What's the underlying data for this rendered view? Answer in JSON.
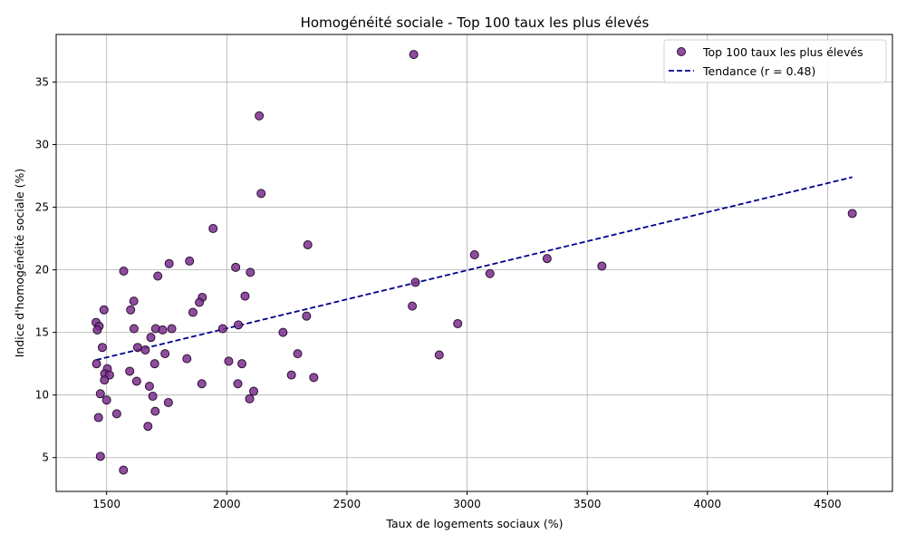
{
  "chart_data": {
    "type": "scatter",
    "title": "Homogénéité sociale - Top 100 taux les plus élevés",
    "xlabel": "Taux de logements sociaux (%)",
    "ylabel": "Indice d'homogénéité sociale (%)",
    "xlim": [
      1290,
      4770
    ],
    "ylim": [
      2.3,
      38.8
    ],
    "xticks": [
      1500,
      2000,
      2500,
      3000,
      3500,
      4000,
      4500
    ],
    "yticks": [
      5,
      10,
      15,
      20,
      25,
      30,
      35
    ],
    "grid": true,
    "legend_position": "top-right",
    "colors": {
      "points": "#7b2e8c",
      "point_edge": "#2b0f33",
      "trend": "#00008b",
      "grid": "#b0b0b0"
    },
    "series": [
      {
        "name": "Top 100 taux les plus élevés",
        "kind": "scatter",
        "points": [
          [
            2778,
            37.2
          ],
          [
            2135,
            32.3
          ],
          [
            2143,
            26.1
          ],
          [
            4603,
            24.5
          ],
          [
            1943,
            23.3
          ],
          [
            2337,
            22.0
          ],
          [
            3031,
            21.2
          ],
          [
            1845,
            20.7
          ],
          [
            3333,
            20.9
          ],
          [
            3561,
            20.3
          ],
          [
            1760,
            20.5
          ],
          [
            2037,
            20.2
          ],
          [
            1571,
            19.9
          ],
          [
            2098,
            19.8
          ],
          [
            3095,
            19.7
          ],
          [
            1713,
            19.5
          ],
          [
            2785,
            19.0
          ],
          [
            1613,
            17.5
          ],
          [
            1898,
            17.8
          ],
          [
            2076,
            17.9
          ],
          [
            1886,
            17.4
          ],
          [
            2772,
            17.1
          ],
          [
            1489,
            16.8
          ],
          [
            1600,
            16.8
          ],
          [
            1859,
            16.6
          ],
          [
            2332,
            16.3
          ],
          [
            1456,
            15.8
          ],
          [
            1469,
            15.5
          ],
          [
            1461,
            15.2
          ],
          [
            2961,
            15.7
          ],
          [
            1614,
            15.3
          ],
          [
            1704,
            15.3
          ],
          [
            1733,
            15.2
          ],
          [
            1771,
            15.3
          ],
          [
            1983,
            15.3
          ],
          [
            2048,
            15.6
          ],
          [
            2234,
            15.0
          ],
          [
            1684,
            14.6
          ],
          [
            1482,
            13.8
          ],
          [
            1629,
            13.8
          ],
          [
            1661,
            13.6
          ],
          [
            1743,
            13.3
          ],
          [
            2295,
            13.3
          ],
          [
            2884,
            13.2
          ],
          [
            1834,
            12.9
          ],
          [
            1458,
            12.5
          ],
          [
            1700,
            12.5
          ],
          [
            2008,
            12.7
          ],
          [
            2063,
            12.5
          ],
          [
            1503,
            12.1
          ],
          [
            1492,
            11.7
          ],
          [
            1512,
            11.6
          ],
          [
            1596,
            11.9
          ],
          [
            2269,
            11.6
          ],
          [
            2362,
            11.4
          ],
          [
            1491,
            11.2
          ],
          [
            1625,
            11.1
          ],
          [
            1678,
            10.7
          ],
          [
            1896,
            10.9
          ],
          [
            2046,
            10.9
          ],
          [
            1474,
            10.1
          ],
          [
            1692,
            9.9
          ],
          [
            2112,
            10.3
          ],
          [
            1500,
            9.6
          ],
          [
            1757,
            9.4
          ],
          [
            2095,
            9.7
          ],
          [
            1702,
            8.7
          ],
          [
            1542,
            8.5
          ],
          [
            1466,
            8.2
          ],
          [
            1672,
            7.5
          ],
          [
            1474,
            5.1
          ],
          [
            1570,
            4.0
          ]
        ]
      },
      {
        "name": "Tendance (r = 0.48)",
        "kind": "line",
        "style": "dashed",
        "x": [
          1456,
          4603
        ],
        "y": [
          12.8,
          27.4
        ]
      }
    ]
  }
}
